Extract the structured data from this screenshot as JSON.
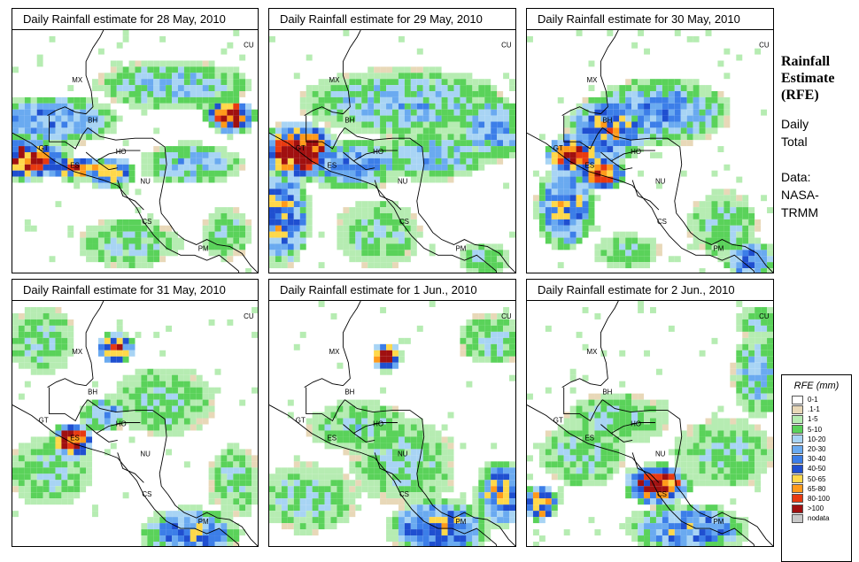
{
  "panels": [
    {
      "title": "Daily Rainfall estimate for  28 May, 2010"
    },
    {
      "title": "Daily Rainfall estimate for  29 May, 2010"
    },
    {
      "title": "Daily Rainfall estimate for  30 May, 2010"
    },
    {
      "title": "Daily Rainfall estimate for  31 May, 2010"
    },
    {
      "title": "Daily Rainfall estimate for  1 Jun., 2010"
    },
    {
      "title": "Daily Rainfall estimate for  2 Jun., 2010"
    }
  ],
  "country_labels": [
    "MX",
    "BH",
    "GT",
    "HO",
    "ES",
    "NU",
    "CS",
    "PM",
    "CU"
  ],
  "side": {
    "title_lines": [
      "Rainfall",
      "Estimate",
      "(RFE)"
    ],
    "daily_lines": [
      "Daily",
      "Total"
    ],
    "data_lines": [
      "Data:",
      "NASA-",
      "TRMM"
    ]
  },
  "legend": {
    "title": "RFE (mm)",
    "items": [
      {
        "label": "0-1",
        "color": "#ffffff"
      },
      {
        "label": ".1-1",
        "color": "#e8d8b8"
      },
      {
        "label": "1-5",
        "color": "#b6ecb2"
      },
      {
        "label": "5-10",
        "color": "#5ad25a"
      },
      {
        "label": "10-20",
        "color": "#a8d4f4"
      },
      {
        "label": "20-30",
        "color": "#6aaaf0"
      },
      {
        "label": "30-40",
        "color": "#3c7ee8"
      },
      {
        "label": "40-50",
        "color": "#1f4fd0"
      },
      {
        "label": "50-65",
        "color": "#ffd84a"
      },
      {
        "label": "65-80",
        "color": "#ff9a1a"
      },
      {
        "label": "80-100",
        "color": "#e83a10"
      },
      {
        "label": ">100",
        "color": "#a01010"
      },
      {
        "label": "nodata",
        "color": "#c8c8c8"
      }
    ]
  }
}
